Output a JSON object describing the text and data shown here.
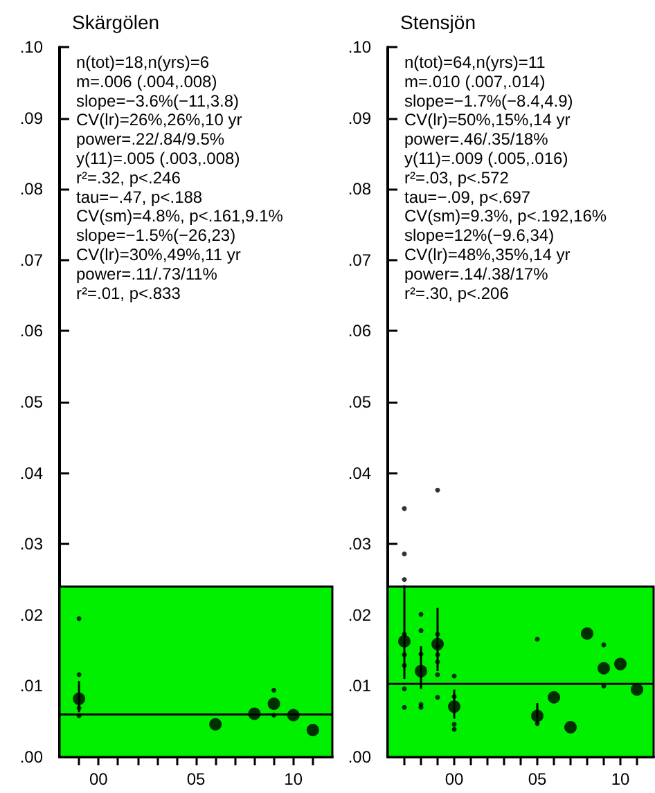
{
  "chart_data": [
    {
      "type": "scatter",
      "title": "Skärgölen",
      "marker": "circle",
      "grid": false,
      "xlim": [
        1998,
        2012
      ],
      "xticks": [
        {
          "value": 1999,
          "label": null
        },
        {
          "value": 2000,
          "label": "00"
        },
        {
          "value": 2001,
          "label": null
        },
        {
          "value": 2002,
          "label": null
        },
        {
          "value": 2003,
          "label": null
        },
        {
          "value": 2004,
          "label": null
        },
        {
          "value": 2005,
          "label": "05"
        },
        {
          "value": 2006,
          "label": null
        },
        {
          "value": 2007,
          "label": null
        },
        {
          "value": 2008,
          "label": null
        },
        {
          "value": 2009,
          "label": null
        },
        {
          "value": 2010,
          "label": "10"
        },
        {
          "value": 2011,
          "label": null
        }
      ],
      "ylim": [
        0,
        0.1
      ],
      "yticks": [
        {
          "value": 0,
          "label": ".00"
        },
        {
          "value": 0.01,
          "label": ".01"
        },
        {
          "value": 0.02,
          "label": ".02"
        },
        {
          "value": 0.03,
          "label": ".03"
        },
        {
          "value": 0.04,
          "label": ".04"
        },
        {
          "value": 0.05,
          "label": ".05"
        },
        {
          "value": 0.06,
          "label": ".06"
        },
        {
          "value": 0.07,
          "label": ".07"
        },
        {
          "value": 0.08,
          "label": ".08"
        },
        {
          "value": 0.09,
          "label": ".09"
        },
        {
          "value": 0.1,
          "label": ".10"
        }
      ],
      "bands": [
        {
          "axis": "y",
          "from": 0,
          "to": 0.024,
          "color": "#00f000"
        }
      ],
      "ref_lines": [
        {
          "axis": "y",
          "value": 0.006,
          "color": "#000000"
        }
      ],
      "series": [
        {
          "color": "#000000",
          "x": [
            1999,
            2006,
            2008,
            2009,
            2010,
            2011
          ],
          "values": [
            0.0082,
            0.0046,
            0.0061,
            0.0075,
            0.0059,
            0.0038
          ],
          "errors": [
            [
              0.0063,
              0.0107
            ],
            null,
            null,
            null,
            null,
            null
          ]
        },
        {
          "color": "#000000",
          "x": [
            1999,
            1999,
            1999,
            1999,
            2009,
            2009
          ],
          "values": [
            0.0195,
            0.0116,
            0.0069,
            0.0058,
            0.0094,
            0.0059
          ]
        }
      ],
      "annotations": [
        "n(tot)=18,n(yrs)=6",
        "m=.006 (.004,.008)",
        "slope=−3.6%(−11,3.8)",
        "CV(lr)=26%,26%,10 yr",
        "power=.22/.84/9.5%",
        "y(11)=.005 (.003,.008)",
        "r²=.32, p<.246",
        "tau=−.47, p<.188",
        "CV(sm)=4.8%, p<.161,9.1%",
        "slope=−1.5%(−26,23)",
        "CV(lr)=30%,49%,11 yr",
        "power=.11/.73/11%",
        "r²=.01, p<.833"
      ]
    },
    {
      "type": "scatter",
      "title": "Stensjön",
      "marker": "circle",
      "grid": false,
      "xlim": [
        1996,
        2012
      ],
      "xticks": [
        {
          "value": 1997,
          "label": null
        },
        {
          "value": 1998,
          "label": null
        },
        {
          "value": 1999,
          "label": null
        },
        {
          "value": 2000,
          "label": "00"
        },
        {
          "value": 2001,
          "label": null
        },
        {
          "value": 2002,
          "label": null
        },
        {
          "value": 2003,
          "label": null
        },
        {
          "value": 2004,
          "label": null
        },
        {
          "value": 2005,
          "label": "05"
        },
        {
          "value": 2006,
          "label": null
        },
        {
          "value": 2007,
          "label": null
        },
        {
          "value": 2008,
          "label": null
        },
        {
          "value": 2009,
          "label": null
        },
        {
          "value": 2010,
          "label": "10"
        },
        {
          "value": 2011,
          "label": null
        }
      ],
      "ylim": [
        0,
        0.1
      ],
      "yticks": [
        {
          "value": 0,
          "label": ".00"
        },
        {
          "value": 0.01,
          "label": ".01"
        },
        {
          "value": 0.02,
          "label": ".02"
        },
        {
          "value": 0.03,
          "label": ".03"
        },
        {
          "value": 0.04,
          "label": ".04"
        },
        {
          "value": 0.05,
          "label": ".05"
        },
        {
          "value": 0.06,
          "label": ".06"
        },
        {
          "value": 0.07,
          "label": ".07"
        },
        {
          "value": 0.08,
          "label": ".08"
        },
        {
          "value": 0.09,
          "label": ".09"
        },
        {
          "value": 0.1,
          "label": ".10"
        }
      ],
      "bands": [
        {
          "axis": "y",
          "from": 0,
          "to": 0.024,
          "color": "#00f000"
        }
      ],
      "ref_lines": [
        {
          "axis": "y",
          "value": 0.0103,
          "color": "#000000"
        }
      ],
      "series": [
        {
          "color": "#000000",
          "x": [
            1997,
            1998,
            1999,
            2000,
            2005,
            2006,
            2007,
            2008,
            2009,
            2010,
            2011
          ],
          "values": [
            0.0163,
            0.0121,
            0.0159,
            0.0071,
            0.0058,
            0.0084,
            0.0042,
            0.0174,
            0.0125,
            0.0131,
            0.0095
          ],
          "errors": [
            [
              0.011,
              0.0242
            ],
            [
              0.0096,
              0.0156
            ],
            [
              0.0121,
              0.021
            ],
            [
              0.0054,
              0.0095
            ],
            [
              0.0046,
              0.0076
            ],
            null,
            null,
            null,
            null,
            null,
            null
          ]
        },
        {
          "color": "#000000",
          "x": [
            1997,
            1997,
            1997,
            1997,
            1997,
            1997,
            1997,
            1997,
            1998,
            1998,
            1998,
            1998,
            1998,
            1999,
            1999,
            1999,
            1999,
            1999,
            1999,
            1999,
            2000,
            2000,
            2000,
            2000,
            2005,
            2005,
            2009,
            2009
          ],
          "values": [
            0.035,
            0.0286,
            0.025,
            0.0173,
            0.0144,
            0.0129,
            0.0096,
            0.007,
            0.0201,
            0.0178,
            0.0145,
            0.0074,
            0.007,
            0.0376,
            0.0173,
            0.0156,
            0.0144,
            0.0134,
            0.0116,
            0.0084,
            0.0114,
            0.0085,
            0.0046,
            0.0039,
            0.0166,
            0.0047,
            0.0158,
            0.01
          ]
        }
      ],
      "annotations": [
        "n(tot)=64,n(yrs)=11",
        "m=.010 (.007,.014)",
        "slope=−1.7%(−8.4,4.9)",
        "CV(lr)=50%,15%,14 yr",
        "power=.46/.35/18%",
        "y(11)=.009 (.005,.016)",
        "r²=.03, p<.572",
        "tau=−.09, p<.697",
        "CV(sm)=9.3%, p<.192,16%",
        "slope=12%(−9.6,34)",
        "CV(lr)=48%,35%,14 yr",
        "power=.14/.38/17%",
        "r²=.30, p<.206"
      ]
    }
  ]
}
